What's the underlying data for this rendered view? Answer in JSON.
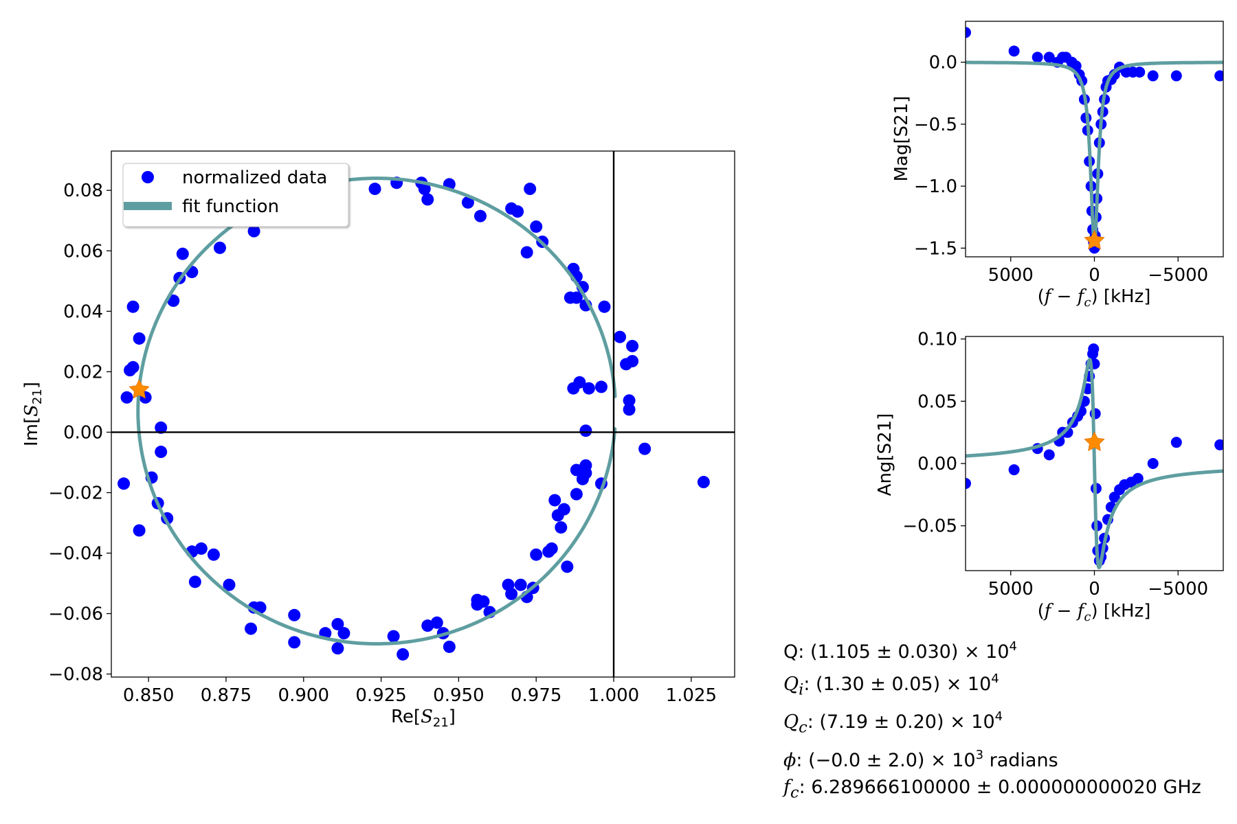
{
  "colors": {
    "data": "#0000ff",
    "fit": "#5f9ea0",
    "marker": "#ff8c00"
  },
  "chart_data": [
    {
      "type": "scatter",
      "xlabel": "Re[S21]",
      "ylabel": "Im[S21]",
      "xlim": [
        0.838,
        1.039
      ],
      "ylim": [
        -0.081,
        0.093
      ],
      "xticks": [
        0.85,
        0.875,
        0.9,
        0.925,
        0.95,
        0.975,
        1.0,
        1.025
      ],
      "xtick_labels": [
        "0.850",
        "0.875",
        "0.900",
        "0.925",
        "0.950",
        "0.975",
        "1.000",
        "1.025"
      ],
      "yticks": [
        -0.08,
        -0.06,
        -0.04,
        -0.02,
        0.0,
        0.02,
        0.04,
        0.06,
        0.08
      ],
      "ytick_labels": [
        "−0.08",
        "−0.06",
        "−0.04",
        "−0.02",
        "0.00",
        "0.02",
        "0.04",
        "0.06",
        "0.08"
      ],
      "legend": {
        "placement": "top-left",
        "entries": [
          "normalized data",
          "fit function"
        ]
      },
      "fit_circle": {
        "center": [
          0.9236,
          0.007
        ],
        "radius": 0.077,
        "gap_start_deg": -3.6,
        "gap_end_deg": 3.6
      },
      "crosshair": {
        "x": 1.0,
        "y": 0.0
      },
      "star": [
        0.847,
        0.014
      ],
      "series": [
        {
          "name": "normalized data",
          "x": [
            0.923,
            0.93,
            0.938,
            0.947,
            0.939,
            0.94,
            0.953,
            0.957,
            0.967,
            0.973,
            0.969,
            0.975,
            0.977,
            0.972,
            0.884,
            0.873,
            0.864,
            0.861,
            0.86,
            0.858,
            0.845,
            0.847,
            0.845,
            0.844,
            0.843,
            0.849,
            0.854,
            0.854,
            0.851,
            0.842,
            0.853,
            0.856,
            0.847,
            0.864,
            0.867,
            0.871,
            0.865,
            0.876,
            0.884,
            0.886,
            0.883,
            0.897,
            0.897,
            0.907,
            0.911,
            0.911,
            0.913,
            0.929,
            0.932,
            0.94,
            0.943,
            0.945,
            0.947,
            0.956,
            0.956,
            0.958,
            0.96,
            0.966,
            0.967,
            0.97,
            0.972,
            0.974,
            0.975,
            0.979,
            0.98,
            0.981,
            0.983,
            0.984,
            0.985,
            0.982,
            0.988,
            0.987,
            0.988,
            0.99,
            0.991,
            0.991,
            0.99,
            0.991,
            0.996,
            0.986,
            0.989,
            0.992,
            0.991,
            0.997,
            0.996,
            0.988,
            0.988,
            0.987,
            1.002,
            1.006,
            1.004,
            1.006,
            1.005,
            1.005,
            1.01,
            1.029
          ],
          "y": [
            0.0805,
            0.0825,
            0.0825,
            0.082,
            0.0805,
            0.077,
            0.076,
            0.0715,
            0.074,
            0.0805,
            0.073,
            0.068,
            0.063,
            0.0595,
            0.0665,
            0.061,
            0.053,
            0.059,
            0.051,
            0.0435,
            0.0415,
            0.031,
            0.0215,
            0.0205,
            0.0115,
            0.0115,
            0.0015,
            -0.0065,
            -0.015,
            -0.017,
            -0.0235,
            -0.0285,
            -0.0325,
            -0.0395,
            -0.0385,
            -0.0405,
            -0.0495,
            -0.0505,
            -0.058,
            -0.058,
            -0.065,
            -0.0605,
            -0.0695,
            -0.0665,
            -0.0635,
            -0.0715,
            -0.0665,
            -0.0675,
            -0.0735,
            -0.064,
            -0.063,
            -0.0665,
            -0.071,
            -0.0555,
            -0.057,
            -0.056,
            -0.0595,
            -0.0505,
            -0.0535,
            -0.0505,
            -0.0545,
            -0.0515,
            -0.0405,
            -0.0395,
            -0.0385,
            -0.0225,
            -0.0315,
            -0.0255,
            -0.0445,
            -0.0275,
            0.0515,
            0.054,
            0.0445,
            0.048,
            0.042,
            -0.011,
            -0.0155,
            -0.0135,
            -0.017,
            0.0445,
            0.0165,
            0.0145,
            0.0005,
            0.0415,
            0.015,
            -0.0205,
            -0.0125,
            0.0145,
            0.0315,
            0.0285,
            0.0225,
            0.0235,
            0.0105,
            0.0075,
            -0.0055,
            -0.0165
          ]
        }
      ]
    },
    {
      "type": "scatter",
      "xlabel": "(f - fc) [kHz]",
      "ylabel": "Mag[S21]",
      "xlim": [
        7700,
        -7700
      ],
      "ylim": [
        -1.57,
        0.33
      ],
      "xticks": [
        5000,
        0,
        -5000
      ],
      "xtick_labels": [
        "5000",
        "0",
        "−5000"
      ],
      "yticks": [
        0.0,
        -0.5,
        -1.0,
        -1.5
      ],
      "ytick_labels": [
        "0.0",
        "−0.5",
        "−1.0",
        "−1.5"
      ],
      "star": [
        0,
        -1.44
      ],
      "fit": {
        "depth": 1.46,
        "halfwidth_khz": 280
      },
      "series": [
        {
          "name": "normalized data",
          "x": [
            7700,
            4800,
            3400,
            2700,
            2200,
            1900,
            1700,
            1350,
            1100,
            900,
            750,
            600,
            500,
            400,
            300,
            200,
            150,
            100,
            50,
            0,
            -50,
            -100,
            -150,
            -200,
            -300,
            -400,
            -500,
            -600,
            -700,
            -800,
            -1000,
            -1200,
            -1500,
            -1900,
            -2300,
            -2700,
            -3500,
            -4900,
            -7500
          ],
          "y": [
            0.24,
            0.09,
            0.04,
            0.04,
            0.0,
            0.04,
            0.04,
            0.0,
            -0.03,
            -0.1,
            -0.15,
            -0.3,
            -0.45,
            -0.55,
            -0.8,
            -1.0,
            -1.2,
            -1.35,
            -1.45,
            -1.5,
            -1.4,
            -1.25,
            -1.1,
            -0.9,
            -0.65,
            -0.5,
            -0.4,
            -0.3,
            -0.2,
            -0.15,
            -0.14,
            -0.1,
            -0.04,
            -0.08,
            -0.08,
            -0.08,
            -0.11,
            -0.11,
            -0.11
          ]
        }
      ]
    },
    {
      "type": "scatter",
      "xlabel": "(f - fc) [kHz]",
      "ylabel": "Ang[S21]",
      "xlim": [
        7700,
        -7700
      ],
      "ylim": [
        -0.086,
        0.102
      ],
      "xticks": [
        5000,
        0,
        -5000
      ],
      "xtick_labels": [
        "5000",
        "0",
        "−5000"
      ],
      "yticks": [
        0.1,
        0.05,
        0.0,
        -0.05
      ],
      "ytick_labels": [
        "0.10",
        "0.05",
        "0.00",
        "−0.05"
      ],
      "star": [
        0,
        0.017
      ],
      "fit": {
        "amplitude": 0.0835,
        "halfwidth_khz": 280
      },
      "series": [
        {
          "name": "normalized data",
          "x": [
            7700,
            4800,
            3400,
            2700,
            2100,
            1900,
            1600,
            1300,
            1000,
            800,
            600,
            400,
            300,
            200,
            100,
            50,
            0,
            -50,
            -100,
            -150,
            -200,
            -300,
            -400,
            -500,
            -600,
            -800,
            -1000,
            -1200,
            -1500,
            -1800,
            -2200,
            -2600,
            -3500,
            -4900,
            -7500
          ],
          "y": [
            -0.016,
            -0.005,
            0.012,
            0.007,
            0.018,
            0.025,
            0.025,
            0.033,
            0.038,
            0.042,
            0.05,
            0.06,
            0.07,
            0.08,
            0.088,
            0.092,
            0.08,
            0.04,
            -0.02,
            -0.05,
            -0.07,
            -0.078,
            -0.075,
            -0.068,
            -0.06,
            -0.045,
            -0.035,
            -0.027,
            -0.021,
            -0.017,
            -0.015,
            -0.012,
            0.0,
            0.017,
            0.015
          ]
        }
      ]
    }
  ],
  "fit_results": {
    "q_label": "Q",
    "q_value": ": (1.105 ± 0.030) × 10",
    "q_exp": "4",
    "qi_label": "Q",
    "qi_sub": "i",
    "qi_value": ": (1.30 ± 0.05) × 10",
    "qi_exp": "4",
    "qc_label": "Q",
    "qc_sub": "c",
    "qc_value": ": (7.19 ± 0.20) × 10",
    "qc_exp": "4",
    "phi_label": "ϕ",
    "phi_value": ": (−0.0 ± 2.0) × 10",
    "phi_exp": "3",
    "phi_unit": " radians",
    "fc_label": "f",
    "fc_sub": "c",
    "fc_value": ": 6.289666100000 ± 0.000000000020 GHz"
  }
}
